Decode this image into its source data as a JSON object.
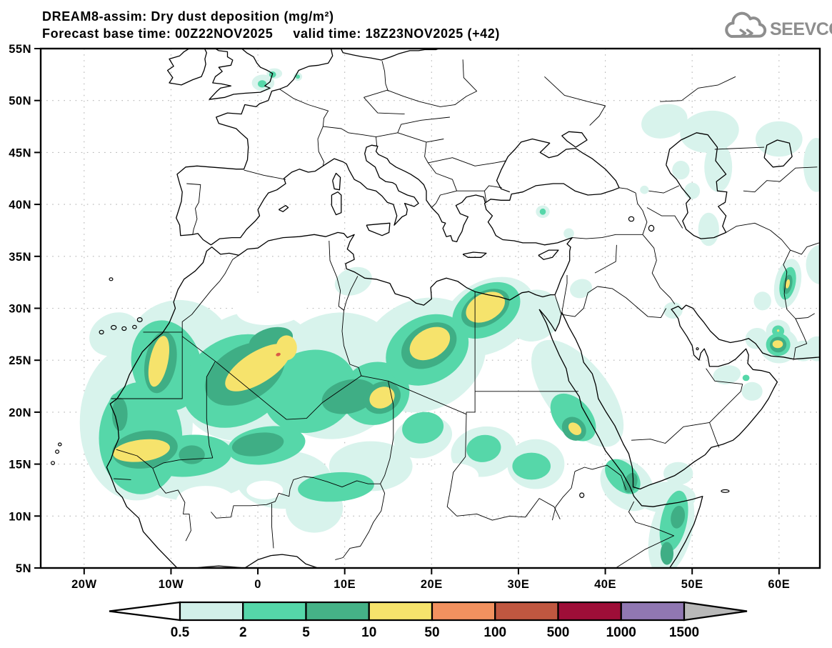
{
  "header": {
    "title_line1": "DREAM8-assim: Dry dust deposition (mg/m²)",
    "title_line2": "Forecast base time: 00Z22NOV2025     valid time: 18Z23NOV2025 (+42)",
    "logo_text": "SEEVCCC"
  },
  "map": {
    "lon_min": -25,
    "lon_max": 65,
    "lat_min": 5,
    "lat_max": 55,
    "lat_ticks": [
      {
        "v": 55,
        "label": "55N"
      },
      {
        "v": 50,
        "label": "50N"
      },
      {
        "v": 45,
        "label": "45N"
      },
      {
        "v": 40,
        "label": "40N"
      },
      {
        "v": 35,
        "label": "35N"
      },
      {
        "v": 30,
        "label": "30N"
      },
      {
        "v": 25,
        "label": "25N"
      },
      {
        "v": 20,
        "label": "20N"
      },
      {
        "v": 15,
        "label": "15N"
      },
      {
        "v": 10,
        "label": "10N"
      },
      {
        "v": 5,
        "label": "5N"
      }
    ],
    "lon_ticks": [
      {
        "v": -20,
        "label": "20W"
      },
      {
        "v": -10,
        "label": "10W"
      },
      {
        "v": 0,
        "label": "0"
      },
      {
        "v": 10,
        "label": "10E"
      },
      {
        "v": 20,
        "label": "20E"
      },
      {
        "v": 30,
        "label": "30E"
      },
      {
        "v": 40,
        "label": "40E"
      },
      {
        "v": 50,
        "label": "50E"
      },
      {
        "v": 60,
        "label": "60E"
      }
    ],
    "grid": {
      "style": "dotted",
      "grid_color": "#b5b5b5"
    }
  },
  "colorbar": {
    "labels": [
      "0.5",
      "2",
      "5",
      "10",
      "50",
      "100",
      "500",
      "1000",
      "1500"
    ],
    "segment_colors": [
      "#d2f0e9",
      "#55d7a9",
      "#45b287",
      "#f6e36c",
      "#f2915f",
      "#c05740",
      "#9e0e38",
      "#9077b2"
    ],
    "below_color": "#ffffff",
    "above_color": "#b9b9b9"
  },
  "chart_data": {
    "type": "heatmap",
    "title": "DREAM8-assim: Dry dust deposition",
    "units": "mg/m²",
    "base_time": "00Z22NOV2025",
    "valid_time": "18Z23NOV2025 (+42)",
    "lon_range": [
      -25,
      65
    ],
    "lat_range": [
      5,
      55
    ],
    "levels": [
      0.5,
      2,
      5,
      10,
      50,
      100,
      500,
      1000,
      1500
    ],
    "level_colors": {
      "hole": "#ffffff",
      "0.5": "#d8f3ec",
      "2": "#56d7a9",
      "5": "#3fae85",
      "10": "#f6e36c",
      "100": "#da5a47"
    },
    "features_format": [
      "level_mg_m2",
      "lon_center",
      "lat_center",
      "rx_deg",
      "ry_deg",
      "rotate_deg"
    ],
    "features": [
      [
        "0.5",
        -14,
        19,
        6.5,
        7.5,
        0
      ],
      [
        "0.5",
        -16.5,
        27.5,
        3,
        2,
        -25
      ],
      [
        "0.5",
        -9,
        25.5,
        6.3,
        5.3,
        -20
      ],
      [
        "0.5",
        -1,
        23.5,
        8.5,
        6,
        -28
      ],
      [
        "0.5",
        9,
        23.5,
        8,
        6,
        -22
      ],
      [
        "0.5",
        19,
        25.5,
        7.5,
        5.3,
        -28
      ],
      [
        "0.5",
        26.5,
        29.2,
        5.8,
        3.4,
        -30
      ],
      [
        "0.5",
        31.8,
        29.3,
        3.2,
        2.4,
        -35
      ],
      [
        "0.5",
        -7,
        14.5,
        7,
        3,
        -4
      ],
      [
        "0.5",
        3,
        13.5,
        5.5,
        2.8,
        0
      ],
      [
        "0.5",
        6.5,
        10.8,
        3.3,
        2.4,
        0
      ],
      [
        "0.5",
        13,
        14.8,
        4.8,
        2.4,
        0
      ],
      [
        "0.5",
        19,
        17.6,
        3.4,
        2,
        -12
      ],
      [
        "0.5",
        26,
        16.2,
        3.8,
        2.4,
        -10
      ],
      [
        "0.5",
        32,
        15,
        3.3,
        2.4,
        0
      ],
      [
        "0.5",
        36.8,
        21.8,
        7.3,
        3,
        52
      ],
      [
        "0.5",
        42.5,
        13,
        3.4,
        2.2,
        42
      ],
      [
        "0.5",
        47.6,
        8.6,
        2.4,
        4.4,
        14
      ],
      [
        "0.5",
        47,
        11.8,
        3.4,
        1.5,
        0
      ],
      [
        "0.5",
        48.4,
        14.1,
        1.7,
        1.1,
        0
      ],
      [
        "0.5",
        0.6,
        51.7,
        1.3,
        0.8,
        0
      ],
      [
        "0.5",
        1.9,
        52.6,
        0.9,
        0.5,
        0
      ],
      [
        "0.5",
        4.6,
        52.3,
        0.5,
        0.4,
        0
      ],
      [
        "0.5",
        32.8,
        39.3,
        0.8,
        0.6,
        0
      ],
      [
        "0.5",
        35.8,
        37.2,
        0.6,
        0.5,
        0
      ],
      [
        "0.5",
        37.2,
        31.9,
        1.3,
        0.9,
        -20
      ],
      [
        "0.5",
        47.8,
        29.8,
        1.1,
        0.8,
        0
      ],
      [
        "0.5",
        46.8,
        48,
        2.7,
        1.6,
        -15
      ],
      [
        "0.5",
        52,
        47,
        3.4,
        2,
        -8
      ],
      [
        "0.5",
        53,
        43.6,
        1.6,
        2.4,
        0
      ],
      [
        "0.5",
        48.7,
        43.3,
        1,
        0.9,
        0
      ],
      [
        "0.5",
        50,
        41.3,
        0.9,
        0.8,
        0
      ],
      [
        "0.5",
        51.9,
        37.6,
        1.2,
        1.6,
        0
      ],
      [
        "0.5",
        44.5,
        41.4,
        0.5,
        0.4,
        0
      ],
      [
        "0.5",
        60,
        46.3,
        2.7,
        1.7,
        0
      ],
      [
        "0.5",
        64.3,
        43.8,
        1.5,
        2.6,
        0
      ],
      [
        "0.5",
        64.8,
        34.2,
        1.7,
        1.9,
        0
      ],
      [
        "0.5",
        61,
        32.4,
        1.5,
        2.4,
        12
      ],
      [
        "0.5",
        58.1,
        30.7,
        1,
        0.9,
        0
      ],
      [
        "0.5",
        59.9,
        27.8,
        1.4,
        1.1,
        0
      ],
      [
        "0.5",
        60,
        26.4,
        2.2,
        1.7,
        0
      ],
      [
        "0.5",
        57.4,
        27.1,
        1.3,
        1,
        -25
      ],
      [
        "0.5",
        62.8,
        25.9,
        1.3,
        1,
        0
      ],
      [
        "0.5",
        64.4,
        26.1,
        1.4,
        1.2,
        0
      ],
      [
        "0.5",
        54,
        23.6,
        1.6,
        0.9,
        -10
      ],
      [
        "0.5",
        56.9,
        22,
        1.2,
        0.9,
        0
      ],
      [
        "0.5",
        11,
        32.6,
        2.2,
        1.3,
        -20
      ],
      [
        "hole",
        7.3,
        23.8,
        2.4,
        2,
        -10
      ],
      [
        "hole",
        1.5,
        29.9,
        4,
        1.5,
        -4
      ],
      [
        "hole",
        -6,
        11.4,
        3.4,
        1.5,
        0
      ],
      [
        "hole",
        0.8,
        12.5,
        2.1,
        0.9,
        0
      ],
      [
        "hole",
        22.5,
        13.9,
        2.9,
        1.2,
        0
      ],
      [
        "2",
        -13.5,
        17.5,
        4.8,
        5.4,
        0
      ],
      [
        "2",
        -16.3,
        20,
        1,
        1.8,
        0
      ],
      [
        "2",
        -10.5,
        24.5,
        4,
        4.4,
        -15
      ],
      [
        "2",
        -2.5,
        23,
        6.5,
        4.2,
        -28
      ],
      [
        "2",
        6,
        22,
        5.5,
        3.9,
        -22
      ],
      [
        "2",
        13.5,
        21.8,
        4,
        3,
        -20
      ],
      [
        "2",
        19.5,
        26,
        5,
        3.2,
        -28
      ],
      [
        "2",
        26.3,
        29.8,
        4.2,
        2.4,
        -30
      ],
      [
        "2",
        -8,
        15.8,
        5,
        2,
        -5
      ],
      [
        "2",
        1,
        16.8,
        4.5,
        1.8,
        -8
      ],
      [
        "2",
        9,
        12.8,
        4.4,
        1.4,
        -4
      ],
      [
        "2",
        19,
        18.5,
        2.4,
        1.5,
        -10
      ],
      [
        "2",
        26,
        16.5,
        2,
        1.3,
        -10
      ],
      [
        "2",
        31.5,
        14.8,
        2.2,
        1.3,
        0
      ],
      [
        "2",
        36.3,
        19.5,
        3.2,
        1.7,
        48
      ],
      [
        "2",
        42,
        13.8,
        2.4,
        1.3,
        44
      ],
      [
        "2",
        47.9,
        9.5,
        1.5,
        3,
        12
      ],
      [
        "2",
        61,
        32.4,
        0.9,
        1.6,
        12
      ],
      [
        "2",
        59.9,
        26.5,
        1.4,
        1.1,
        0
      ],
      [
        "2",
        59.9,
        27.8,
        0.7,
        0.55,
        0
      ],
      [
        "2",
        56.2,
        23.3,
        0.4,
        0.3,
        0
      ],
      [
        "2",
        0.5,
        51.6,
        0.5,
        0.35,
        0
      ],
      [
        "2",
        1.7,
        52.5,
        0.4,
        0.3,
        0
      ],
      [
        "2",
        4.6,
        52.3,
        0.25,
        0.2,
        0
      ],
      [
        "2",
        32.8,
        39.3,
        0.35,
        0.3,
        0
      ],
      [
        "5",
        -13,
        16.4,
        3.8,
        1.8,
        -8
      ],
      [
        "5",
        -15.9,
        19.8,
        0.9,
        1.6,
        0
      ],
      [
        "5",
        -11.2,
        24.8,
        1.8,
        3,
        10
      ],
      [
        "5",
        -1.5,
        23.7,
        5,
        2.6,
        -30
      ],
      [
        "5",
        1.5,
        26.9,
        2.6,
        1.2,
        -16
      ],
      [
        "5",
        10.5,
        21.5,
        3.2,
        1.6,
        -14
      ],
      [
        "5",
        14.3,
        21.4,
        2.2,
        1.5,
        -25
      ],
      [
        "5",
        19.7,
        26.4,
        3.4,
        2,
        -30
      ],
      [
        "5",
        26.2,
        30,
        3,
        1.6,
        -30
      ],
      [
        "5",
        0,
        16.9,
        3,
        1.1,
        -8
      ],
      [
        "5",
        -7.6,
        15.9,
        1.5,
        0.9,
        0
      ],
      [
        "5",
        36.4,
        18.4,
        1.5,
        1.05,
        42
      ],
      [
        "5",
        42.9,
        13.2,
        0.75,
        1,
        20
      ],
      [
        "5",
        48.35,
        9.9,
        0.8,
        1.1,
        10
      ],
      [
        "5",
        47.1,
        6.4,
        0.75,
        1.1,
        0
      ],
      [
        "5",
        61,
        32.3,
        0.5,
        0.95,
        12
      ],
      [
        "5",
        59.9,
        26.5,
        0.95,
        0.75,
        0
      ],
      [
        "10",
        -13.4,
        16.3,
        3.3,
        1.05,
        -7
      ],
      [
        "10",
        -11.4,
        24.9,
        1.05,
        2.5,
        12
      ],
      [
        "10",
        0,
        24.3,
        4.3,
        1.5,
        -32
      ],
      [
        "10",
        3.3,
        26.2,
        1.2,
        1.2,
        0
      ],
      [
        "10",
        14.3,
        21.4,
        1.5,
        1,
        -25
      ],
      [
        "10",
        19.8,
        26.6,
        2.5,
        1.4,
        -30
      ],
      [
        "10",
        26.2,
        30.1,
        2.4,
        1.3,
        -28
      ],
      [
        "10",
        36.5,
        18.4,
        0.85,
        0.5,
        42
      ],
      [
        "10",
        61,
        32.35,
        0.23,
        0.45,
        12
      ],
      [
        "10",
        59.85,
        26.55,
        0.6,
        0.38,
        0
      ],
      [
        "10",
        59.9,
        27.85,
        0.14,
        0.12,
        0
      ],
      [
        "100",
        2.35,
        25.55,
        0.28,
        0.16,
        -20
      ]
    ]
  }
}
